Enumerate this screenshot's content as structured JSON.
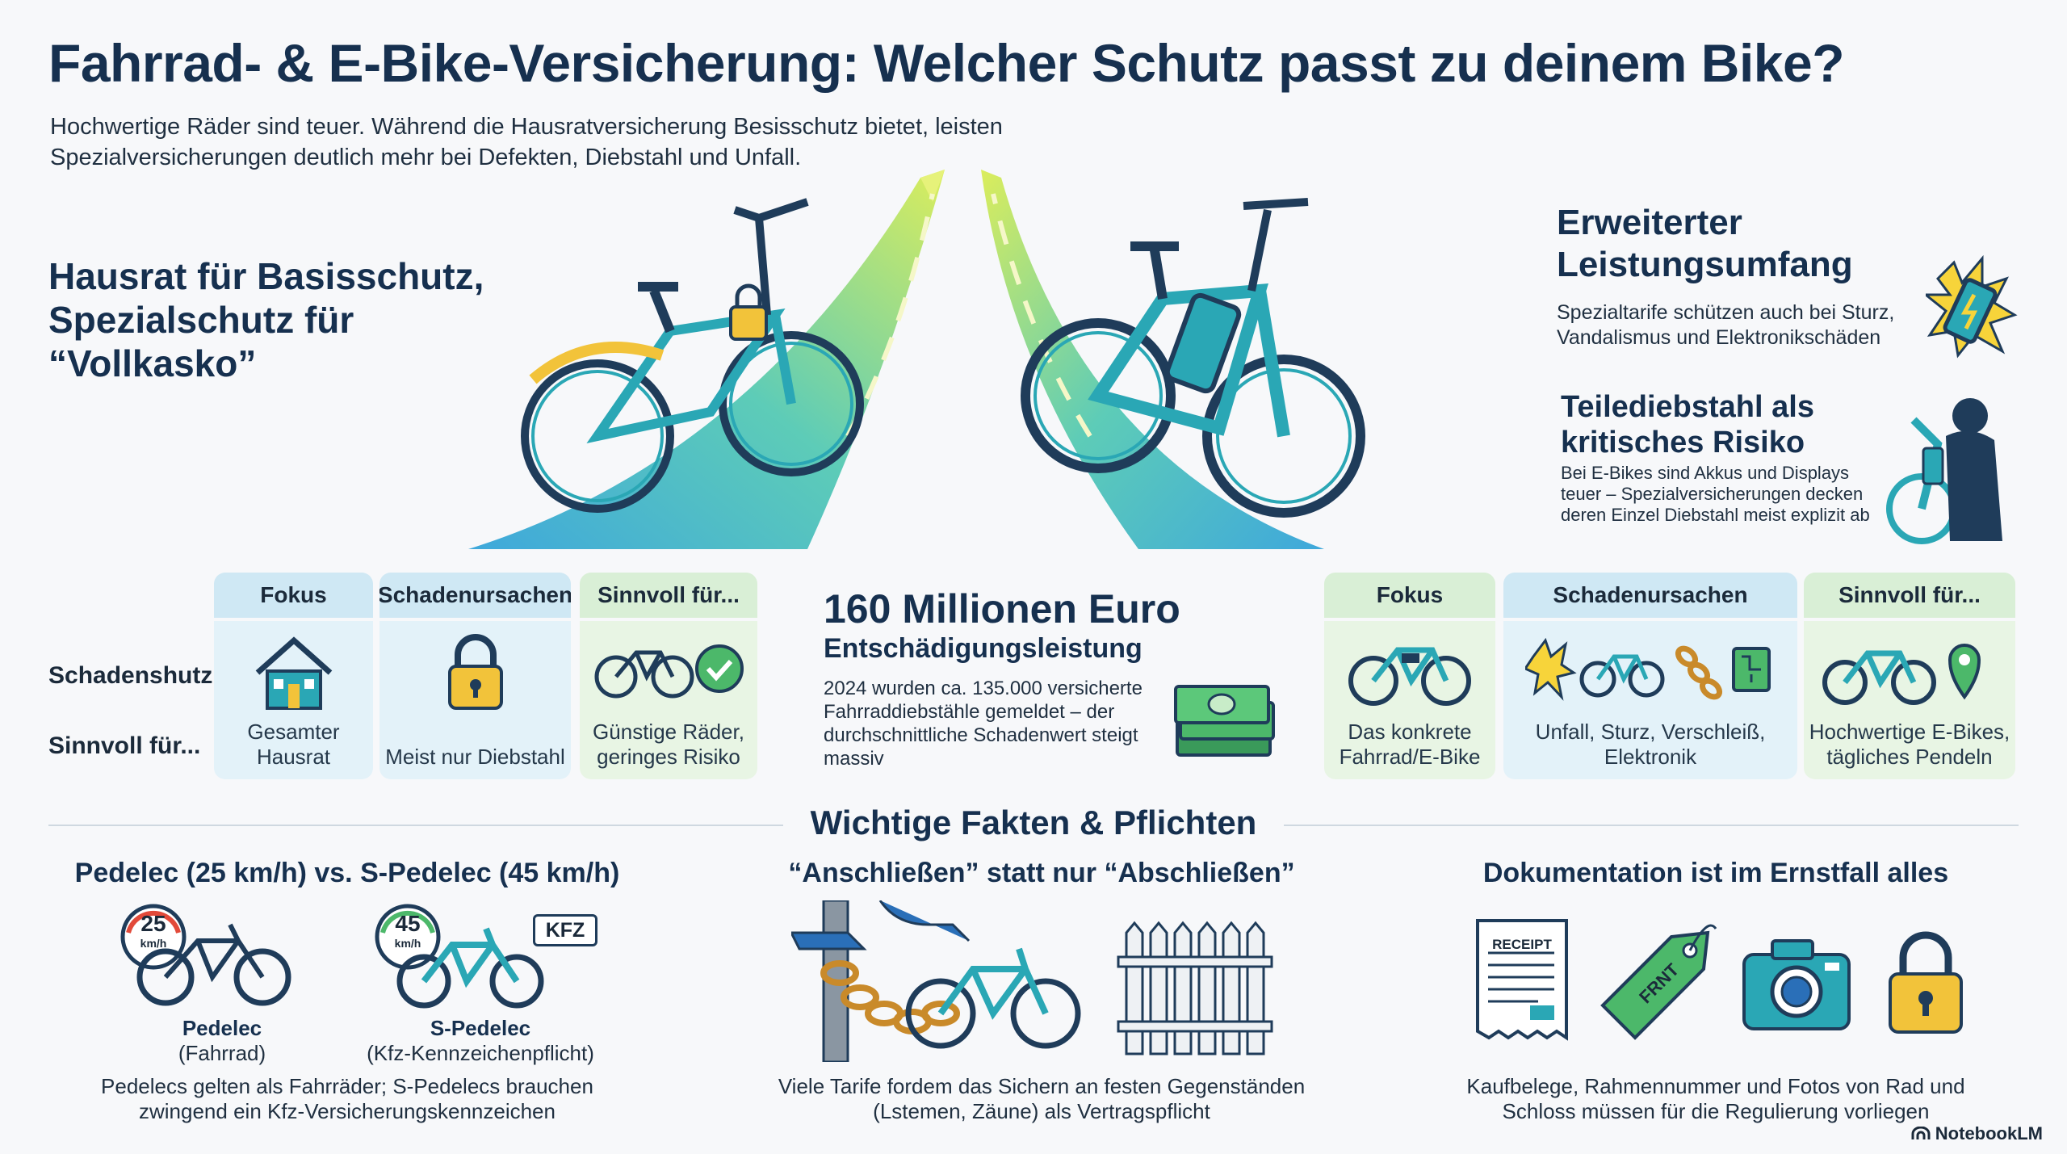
{
  "header": {
    "title": "Fahrrad- & E-Bike-Versicherung: Welcher Schutz passt zu deinem Bike?",
    "subtitle": "Hochwertige Räder sind teuer. Während die Hausratversicherung Besisschutz bietet, leisten Spezialversicherungen deutlich mehr bei Defekten, Diebstahl und Unfall."
  },
  "left": {
    "heading": "Hausrat für Basisschutz, Spezialschutz für “Vollkasko”",
    "row_labels": [
      "Schadenshutz",
      "Sinnvoll für..."
    ],
    "cards": [
      {
        "header": "Fokus",
        "caption": "Gesamter Hausrat",
        "icon": "house-icon"
      },
      {
        "header": "Schadenursachen",
        "caption": "Meist nur Diebstahl",
        "icon": "padlock-icon"
      },
      {
        "header": "Sinnvoll für...",
        "caption": "Günstige Räder, geringes Risiko",
        "icon": "bike-check-icon"
      }
    ]
  },
  "right": {
    "feature1": {
      "heading": "Erweiterter Leistungsumfang",
      "text": "Spezialtarife schützen auch bei Sturz, Vandalismus und Elektronikschäden"
    },
    "feature2": {
      "heading": "Teilediebstahl als kritisches Risiko",
      "text": "Bei E-Bikes sind Akkus und Displays teuer – Spezialversicherungen decken deren Einzel Diebstahl meist explizit ab"
    },
    "cards": [
      {
        "header": "Fokus",
        "caption": "Das konkrete Fahrrad/E-Bike",
        "icon": "ebike-icon"
      },
      {
        "header": "Schadenursachen",
        "caption": "Unfall, Sturz, Verschleiß, Elektronik",
        "icon": "damage-causes-icon"
      },
      {
        "header": "Sinnvoll für...",
        "caption": "Hochwertige E-Bikes, tägliches Pendeln",
        "icon": "ebike-location-icon"
      }
    ]
  },
  "stat": {
    "big": "160 Millionen Euro",
    "sub": "Entschädigungsleistung",
    "desc": "2024 wurden ca. 135.000 versicherte Fahrraddiebstähle gemeldet – der durchschnittliche Schadenwert steigt massiv"
  },
  "facts": {
    "title": "Wichtige Fakten & Pflichten",
    "items": [
      {
        "heading": "Pedelec (25 km/h) vs. S-Pedelec (45 km/h)",
        "bike1": {
          "speed": "25",
          "unit": "km/h",
          "name": "Pedelec",
          "type": "(Fahrrad)"
        },
        "bike2": {
          "speed": "45",
          "unit": "km/h",
          "name": "S-Pedelec",
          "type": "(Kfz-Kennzeichenpflicht)",
          "plate": "KFZ"
        },
        "text": "Pedelecs gelten als Fahrräder; S-Pedelecs brauchen zwingend ein Kfz-Versicherungskennzeichen"
      },
      {
        "heading": "“Anschließen” statt nur “Abschließen”",
        "text": "Viele Tarife fordem das Sichern an festen Gegenständen (Lstemen, Zäune) als Vertragspflicht"
      },
      {
        "heading": "Dokumentation ist im Ernstfall alles",
        "receipt_label": "RECEIPT",
        "tag_label": "FRNT",
        "text": "Kaufbelege, Rahmennummer und Fotos von Rad und Schloss müssen für die Regulierung vorliegen"
      }
    ]
  },
  "brand": "NotebookLM",
  "colors": {
    "navy": "#16304f",
    "teal": "#2aa7b5",
    "lime": "#c9e04a",
    "blue_card": "#e3f2f9",
    "green_card": "#e8f5e4"
  }
}
